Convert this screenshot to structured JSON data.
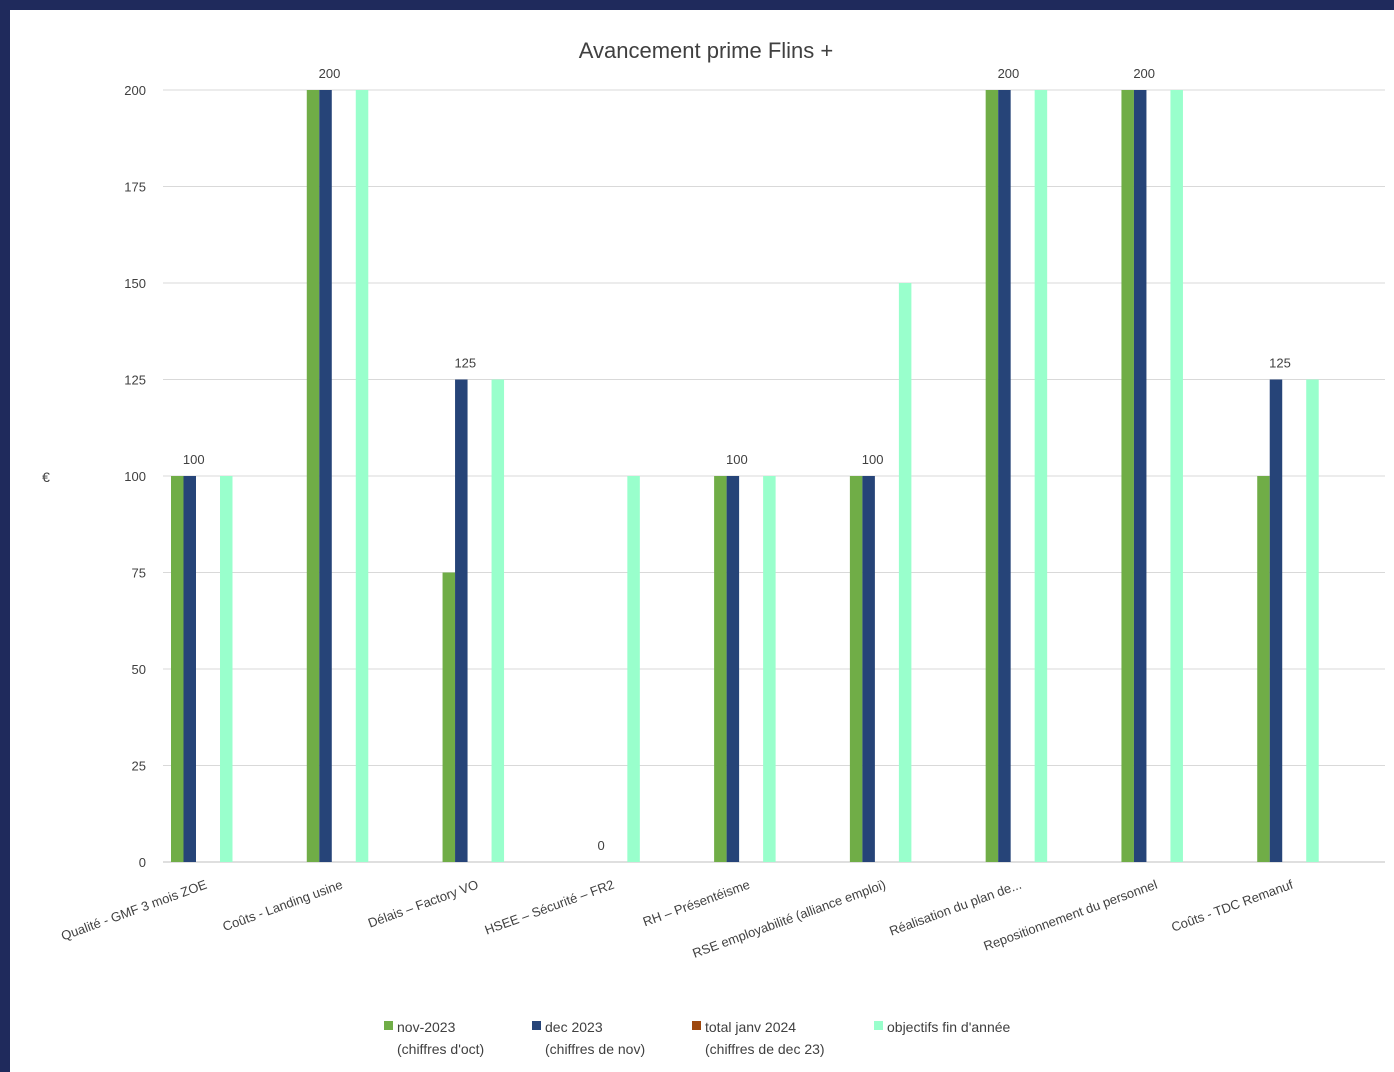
{
  "chart_data": {
    "type": "bar",
    "title": "Avancement prime Flins +",
    "ylabel": "€",
    "xlabel": "",
    "ylim": [
      0,
      200
    ],
    "yticks": [
      0,
      25,
      50,
      75,
      100,
      125,
      150,
      175,
      200
    ],
    "grid": true,
    "legend_position": "bottom",
    "categories": [
      "Qualité - GMF 3 mois ZOE",
      "Coûts - Landing usine",
      "Délais – Factory VO",
      "HSEE – Sécurité – FR2",
      "RH – Présentéisme",
      "RSE employabilité (alliance emploi)",
      "Réalisation du plan de...",
      "Repositionnement du personnel",
      "Coûts - TDC Remanuf"
    ],
    "series": [
      {
        "name": "nov-2023",
        "name_line2": "(chiffres d'oct)",
        "color": "#70ad47",
        "values": [
          100,
          200,
          75,
          0,
          100,
          100,
          200,
          200,
          100
        ]
      },
      {
        "name": "dec 2023",
        "name_line2": "(chiffres de nov)",
        "color": "#264478",
        "values": [
          100,
          200,
          125,
          0,
          100,
          100,
          200,
          200,
          125
        ]
      },
      {
        "name": "total janv 2024",
        "name_line2": "(chiffres de dec 23)",
        "color": "#9e480e",
        "values": [
          0,
          0,
          0,
          0,
          0,
          0,
          0,
          0,
          0
        ]
      },
      {
        "name": "objectifs fin d'année",
        "name_line2": "",
        "color": "#99ffcc",
        "values": [
          100,
          200,
          125,
          100,
          100,
          150,
          200,
          200,
          125
        ]
      }
    ],
    "data_labels": [
      "100",
      "200",
      "125",
      "0",
      "100",
      "100",
      "200",
      "200",
      "125"
    ]
  }
}
